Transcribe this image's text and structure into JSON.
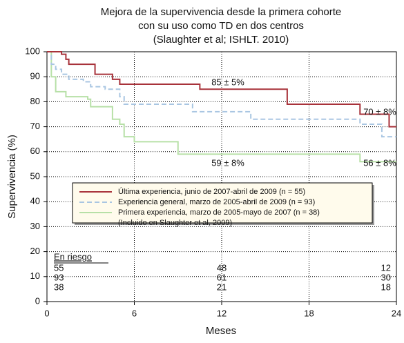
{
  "chart_data": {
    "type": "step",
    "title": [
      "Mejora de la supervivencia desde la primera cohorte",
      "con su uso como TD en dos centros",
      "(Slaughter et al; ISHLT. 2010)"
    ],
    "x_label": "Meses",
    "y_label": "Supervivencia (%)",
    "xlim": [
      0,
      24
    ],
    "xticks": [
      0,
      6,
      12,
      18,
      24
    ],
    "ylim": [
      0,
      100
    ],
    "yticks": [
      0,
      10,
      20,
      30,
      40,
      50,
      60,
      70,
      80,
      90,
      100
    ],
    "grid": true,
    "series": [
      {
        "name": "Última experiencia, junio de 2007-abril de 2009 (n = 55)",
        "color": "#a8323a",
        "dashed": false,
        "x": [
          0,
          1,
          1.3,
          1.5,
          3.3,
          4.5,
          5,
          10.5,
          16.5,
          21.5,
          23.5,
          24
        ],
        "values": [
          100,
          99,
          97,
          95,
          91,
          89,
          87,
          85,
          79,
          75,
          70,
          70
        ]
      },
      {
        "name": "Experiencia general, marzo de 2005-abril de 2009 (n = 93)",
        "color": "#a9c6e2",
        "dashed": true,
        "x": [
          0,
          0.3,
          0.6,
          1,
          1.5,
          2.5,
          3,
          4,
          5,
          5.3,
          10,
          14,
          21.5,
          23,
          24
        ],
        "values": [
          100,
          95,
          93,
          91,
          89,
          88,
          86,
          85,
          82,
          79,
          76,
          73,
          71,
          66,
          66
        ]
      },
      {
        "name": "Primera experiencia, marzo de 2005-mayo de 2007 (n = 38)",
        "color": "#b7e0a7",
        "dashed": false,
        "x": [
          0,
          0.3,
          0.6,
          1.3,
          2.8,
          3,
          4.5,
          5,
          5.3,
          6,
          9,
          21.5,
          24
        ],
        "values": [
          100,
          90,
          84,
          82,
          81,
          78,
          73,
          71,
          66,
          64,
          59,
          56,
          56
        ]
      }
    ],
    "legend_note": "(Incluido en Slaughter et al, 2009)",
    "annotations": [
      "85 ± 5%",
      "70 ± 8%",
      "59 ± 8%",
      "56 ± 8%"
    ],
    "risk_table": {
      "title": "En riesgo",
      "rows": [
        [
          55,
          48,
          12
        ],
        [
          93,
          61,
          30
        ],
        [
          38,
          21,
          18
        ]
      ]
    }
  }
}
